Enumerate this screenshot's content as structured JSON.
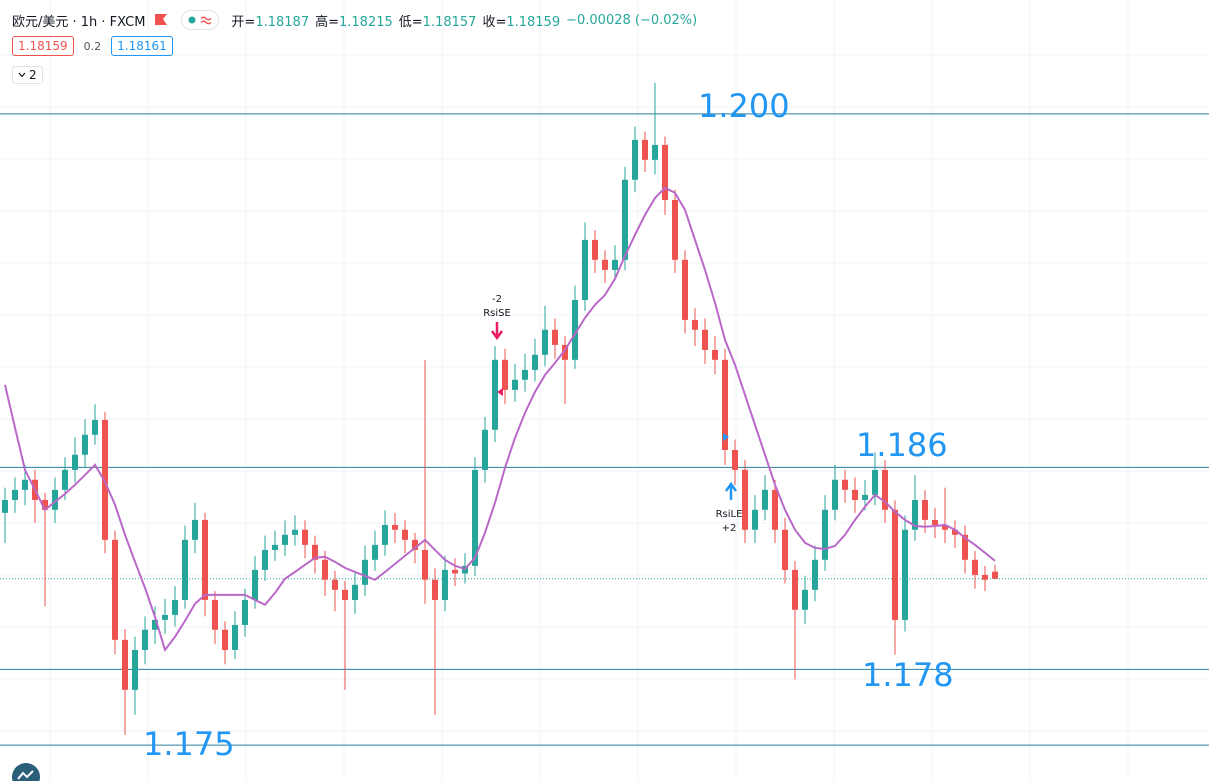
{
  "header": {
    "symbol": "欧元/美元 · 1h · FXCM",
    "ohlc": [
      {
        "label": "开=",
        "value": "1.18187"
      },
      {
        "label": "高=",
        "value": "1.18215"
      },
      {
        "label": "低=",
        "value": "1.18157"
      },
      {
        "label": "收=",
        "value": "1.18159"
      }
    ],
    "change": "−0.00028 (−0.02%)",
    "sell": "1.18159",
    "spread": "0.2",
    "buy": "1.18161",
    "indicators_count": "2"
  },
  "chart_data": {
    "type": "candlestick",
    "ylim": [
      1.17358,
      1.20451
    ],
    "up_color": "#26a69a",
    "down_color": "#ef5350",
    "open": [
      1.1842,
      1.18471,
      1.18511,
      1.18551,
      1.18471,
      1.18432,
      1.18511,
      1.1859,
      1.1865,
      1.18729,
      1.18788,
      1.18313,
      1.17917,
      1.17719,
      1.17877,
      1.17957,
      1.17996,
      1.18016,
      1.18075,
      1.18313,
      1.18392,
      1.18075,
      1.17957,
      1.17877,
      1.17976,
      1.18075,
      1.18194,
      1.18273,
      1.18293,
      1.18333,
      1.18353,
      1.18293,
      1.18234,
      1.18155,
      1.18115,
      1.18075,
      1.18135,
      1.18234,
      1.18293,
      1.18372,
      1.18353,
      1.18313,
      1.18273,
      1.18155,
      1.18075,
      1.18194,
      1.1818,
      1.1821,
      1.1859,
      1.18749,
      1.19026,
      1.18907,
      1.18947,
      1.18986,
      1.19046,
      1.19145,
      1.19085,
      1.19026,
      1.19263,
      1.19501,
      1.19422,
      1.19382,
      1.19422,
      1.19739,
      1.19897,
      1.19818,
      1.19877,
      1.19659,
      1.19422,
      1.19184,
      1.19145,
      1.19065,
      1.19026,
      1.18669,
      1.1859,
      1.18353,
      1.18432,
      1.18511,
      1.18353,
      1.18194,
      1.18036,
      1.18115,
      1.18234,
      1.18432,
      1.18551,
      1.18511,
      1.18471,
      1.18491,
      1.1859,
      1.18432,
      1.17996,
      1.18353,
      1.18471,
      1.18392,
      1.18372,
      1.18353,
      1.18333,
      1.18234,
      1.18174,
      1.18187
    ],
    "high": [
      1.1852,
      1.1856,
      1.1861,
      1.1859,
      1.185,
      1.1856,
      1.1864,
      1.1872,
      1.1879,
      1.1885,
      1.1882,
      1.1835,
      1.1796,
      1.1793,
      1.1801,
      1.1805,
      1.1808,
      1.1813,
      1.1837,
      1.1846,
      1.1842,
      1.1811,
      1.1799,
      1.1803,
      1.1812,
      1.1825,
      1.1833,
      1.1835,
      1.1839,
      1.1841,
      1.1839,
      1.1833,
      1.1827,
      1.1819,
      1.1815,
      1.1819,
      1.1829,
      1.1835,
      1.1843,
      1.1842,
      1.1839,
      1.1834,
      1.19026,
      1.182,
      1.1825,
      1.1824,
      1.1826,
      1.1864,
      1.188,
      1.1908,
      1.1907,
      1.1901,
      1.1905,
      1.1911,
      1.1924,
      1.1919,
      1.1912,
      1.1932,
      1.1957,
      1.1954,
      1.1946,
      1.1948,
      1.1979,
      1.1995,
      1.1993,
      1.20123,
      1.1991,
      1.197,
      1.1946,
      1.1923,
      1.1919,
      1.1912,
      1.1907,
      1.1871,
      1.1863,
      1.1849,
      1.1857,
      1.1855,
      1.184,
      1.1823,
      1.1817,
      1.1829,
      1.1849,
      1.1861,
      1.1859,
      1.1856,
      1.1855,
      1.1866,
      1.1863,
      1.1847,
      1.1841,
      1.1857,
      1.1851,
      1.1844,
      1.1852,
      1.1839,
      1.1837,
      1.1827,
      1.1821,
      1.18215
    ],
    "low": [
      1.183,
      1.1842,
      1.1845,
      1.1838,
      1.1805,
      1.1838,
      1.1847,
      1.1854,
      1.186,
      1.1869,
      1.1826,
      1.1786,
      1.17541,
      1.1762,
      1.1782,
      1.179,
      1.1794,
      1.1797,
      1.1804,
      1.1826,
      1.1801,
      1.179,
      1.1782,
      1.1784,
      1.1793,
      1.1804,
      1.1815,
      1.1823,
      1.1825,
      1.1829,
      1.1824,
      1.1818,
      1.1809,
      1.1803,
      1.17719,
      1.1802,
      1.1809,
      1.1819,
      1.1825,
      1.183,
      1.1826,
      1.1822,
      1.1806,
      1.1762,
      1.1803,
      1.1813,
      1.1814,
      1.1817,
      1.1854,
      1.187,
      1.1885,
      1.1886,
      1.189,
      1.1894,
      1.19,
      1.1903,
      1.1885,
      1.1899,
      1.1922,
      1.1937,
      1.1933,
      1.1934,
      1.1938,
      1.1969,
      1.1977,
      1.1976,
      1.196,
      1.1937,
      1.1913,
      1.1908,
      1.1901,
      1.1897,
      1.1861,
      1.1853,
      1.183,
      1.183,
      1.1839,
      1.183,
      1.1814,
      1.1776,
      1.1798,
      1.1807,
      1.1819,
      1.1839,
      1.1846,
      1.1842,
      1.1843,
      1.1845,
      1.1838,
      1.17858,
      1.1795,
      1.1831,
      1.1834,
      1.1832,
      1.183,
      1.1828,
      1.1818,
      1.1812,
      1.1811,
      1.18157
    ],
    "close": [
      1.18471,
      1.18511,
      1.18551,
      1.18471,
      1.18432,
      1.18511,
      1.1859,
      1.1865,
      1.18729,
      1.18788,
      1.18313,
      1.17917,
      1.17719,
      1.17877,
      1.17957,
      1.17996,
      1.18016,
      1.18075,
      1.18313,
      1.18392,
      1.18075,
      1.17957,
      1.17877,
      1.17976,
      1.18075,
      1.18194,
      1.18273,
      1.18293,
      1.18333,
      1.18353,
      1.18293,
      1.18234,
      1.18155,
      1.18115,
      1.18075,
      1.18135,
      1.18234,
      1.18293,
      1.18372,
      1.18353,
      1.18313,
      1.18273,
      1.18155,
      1.18075,
      1.18194,
      1.1818,
      1.1821,
      1.1859,
      1.18749,
      1.19026,
      1.18907,
      1.18947,
      1.18986,
      1.19046,
      1.19145,
      1.19085,
      1.19026,
      1.19263,
      1.19501,
      1.19422,
      1.19382,
      1.19422,
      1.19739,
      1.19897,
      1.19818,
      1.19877,
      1.19659,
      1.19422,
      1.19184,
      1.19145,
      1.19065,
      1.19026,
      1.18669,
      1.1859,
      1.18353,
      1.18432,
      1.18511,
      1.18353,
      1.18194,
      1.18036,
      1.18115,
      1.18234,
      1.18432,
      1.18551,
      1.18511,
      1.18471,
      1.18491,
      1.1859,
      1.18432,
      1.17996,
      1.18353,
      1.18471,
      1.18392,
      1.18372,
      1.18353,
      1.18333,
      1.18234,
      1.18174,
      1.18155,
      1.18159
    ],
    "ma": {
      "color": "#ba68c8",
      "values": [
        1.18927,
        1.18757,
        1.1859,
        1.18511,
        1.18432,
        1.18464,
        1.18495,
        1.18531,
        1.1857,
        1.1861,
        1.18543,
        1.18452,
        1.18333,
        1.18226,
        1.18123,
        1.18008,
        1.17877,
        1.17929,
        1.17992,
        1.1806,
        1.18095,
        1.18095,
        1.18095,
        1.18095,
        1.18095,
        1.18075,
        1.18056,
        1.18103,
        1.18159,
        1.18186,
        1.18214,
        1.18242,
        1.18246,
        1.18226,
        1.18202,
        1.18186,
        1.1817,
        1.18155,
        1.18186,
        1.18218,
        1.1825,
        1.18281,
        1.18313,
        1.18273,
        1.18234,
        1.1821,
        1.18198,
        1.18242,
        1.18341,
        1.1846,
        1.18598,
        1.18717,
        1.18816,
        1.18899,
        1.18966,
        1.19014,
        1.19065,
        1.19129,
        1.19192,
        1.19244,
        1.19283,
        1.19347,
        1.19438,
        1.19521,
        1.196,
        1.19667,
        1.19707,
        1.19687,
        1.1962,
        1.19501,
        1.19382,
        1.19252,
        1.19105,
        1.19006,
        1.18887,
        1.18768,
        1.1865,
        1.18531,
        1.18432,
        1.18353,
        1.18301,
        1.18281,
        1.18277,
        1.18289,
        1.18333,
        1.18392,
        1.18444,
        1.18491,
        1.18464,
        1.18424,
        1.18392,
        1.18368,
        1.18365,
        1.18368,
        1.18372,
        1.18353,
        1.18321,
        1.18293,
        1.18262,
        1.1823
      ]
    },
    "last_price": 1.18159,
    "levels": [
      {
        "value": 1.2,
        "label": "1.200"
      },
      {
        "value": 1.186,
        "label": "1.186"
      },
      {
        "value": 1.178,
        "label": "1.178"
      },
      {
        "value": 1.175,
        "label": "1.175"
      }
    ],
    "level_color": "#2a7f9e",
    "level_label_color": "#2196f3",
    "signals": [
      {
        "qty": "-2",
        "name": "RsiSE"
      },
      {
        "name": "RsiLE",
        "qty": "+2"
      }
    ]
  }
}
